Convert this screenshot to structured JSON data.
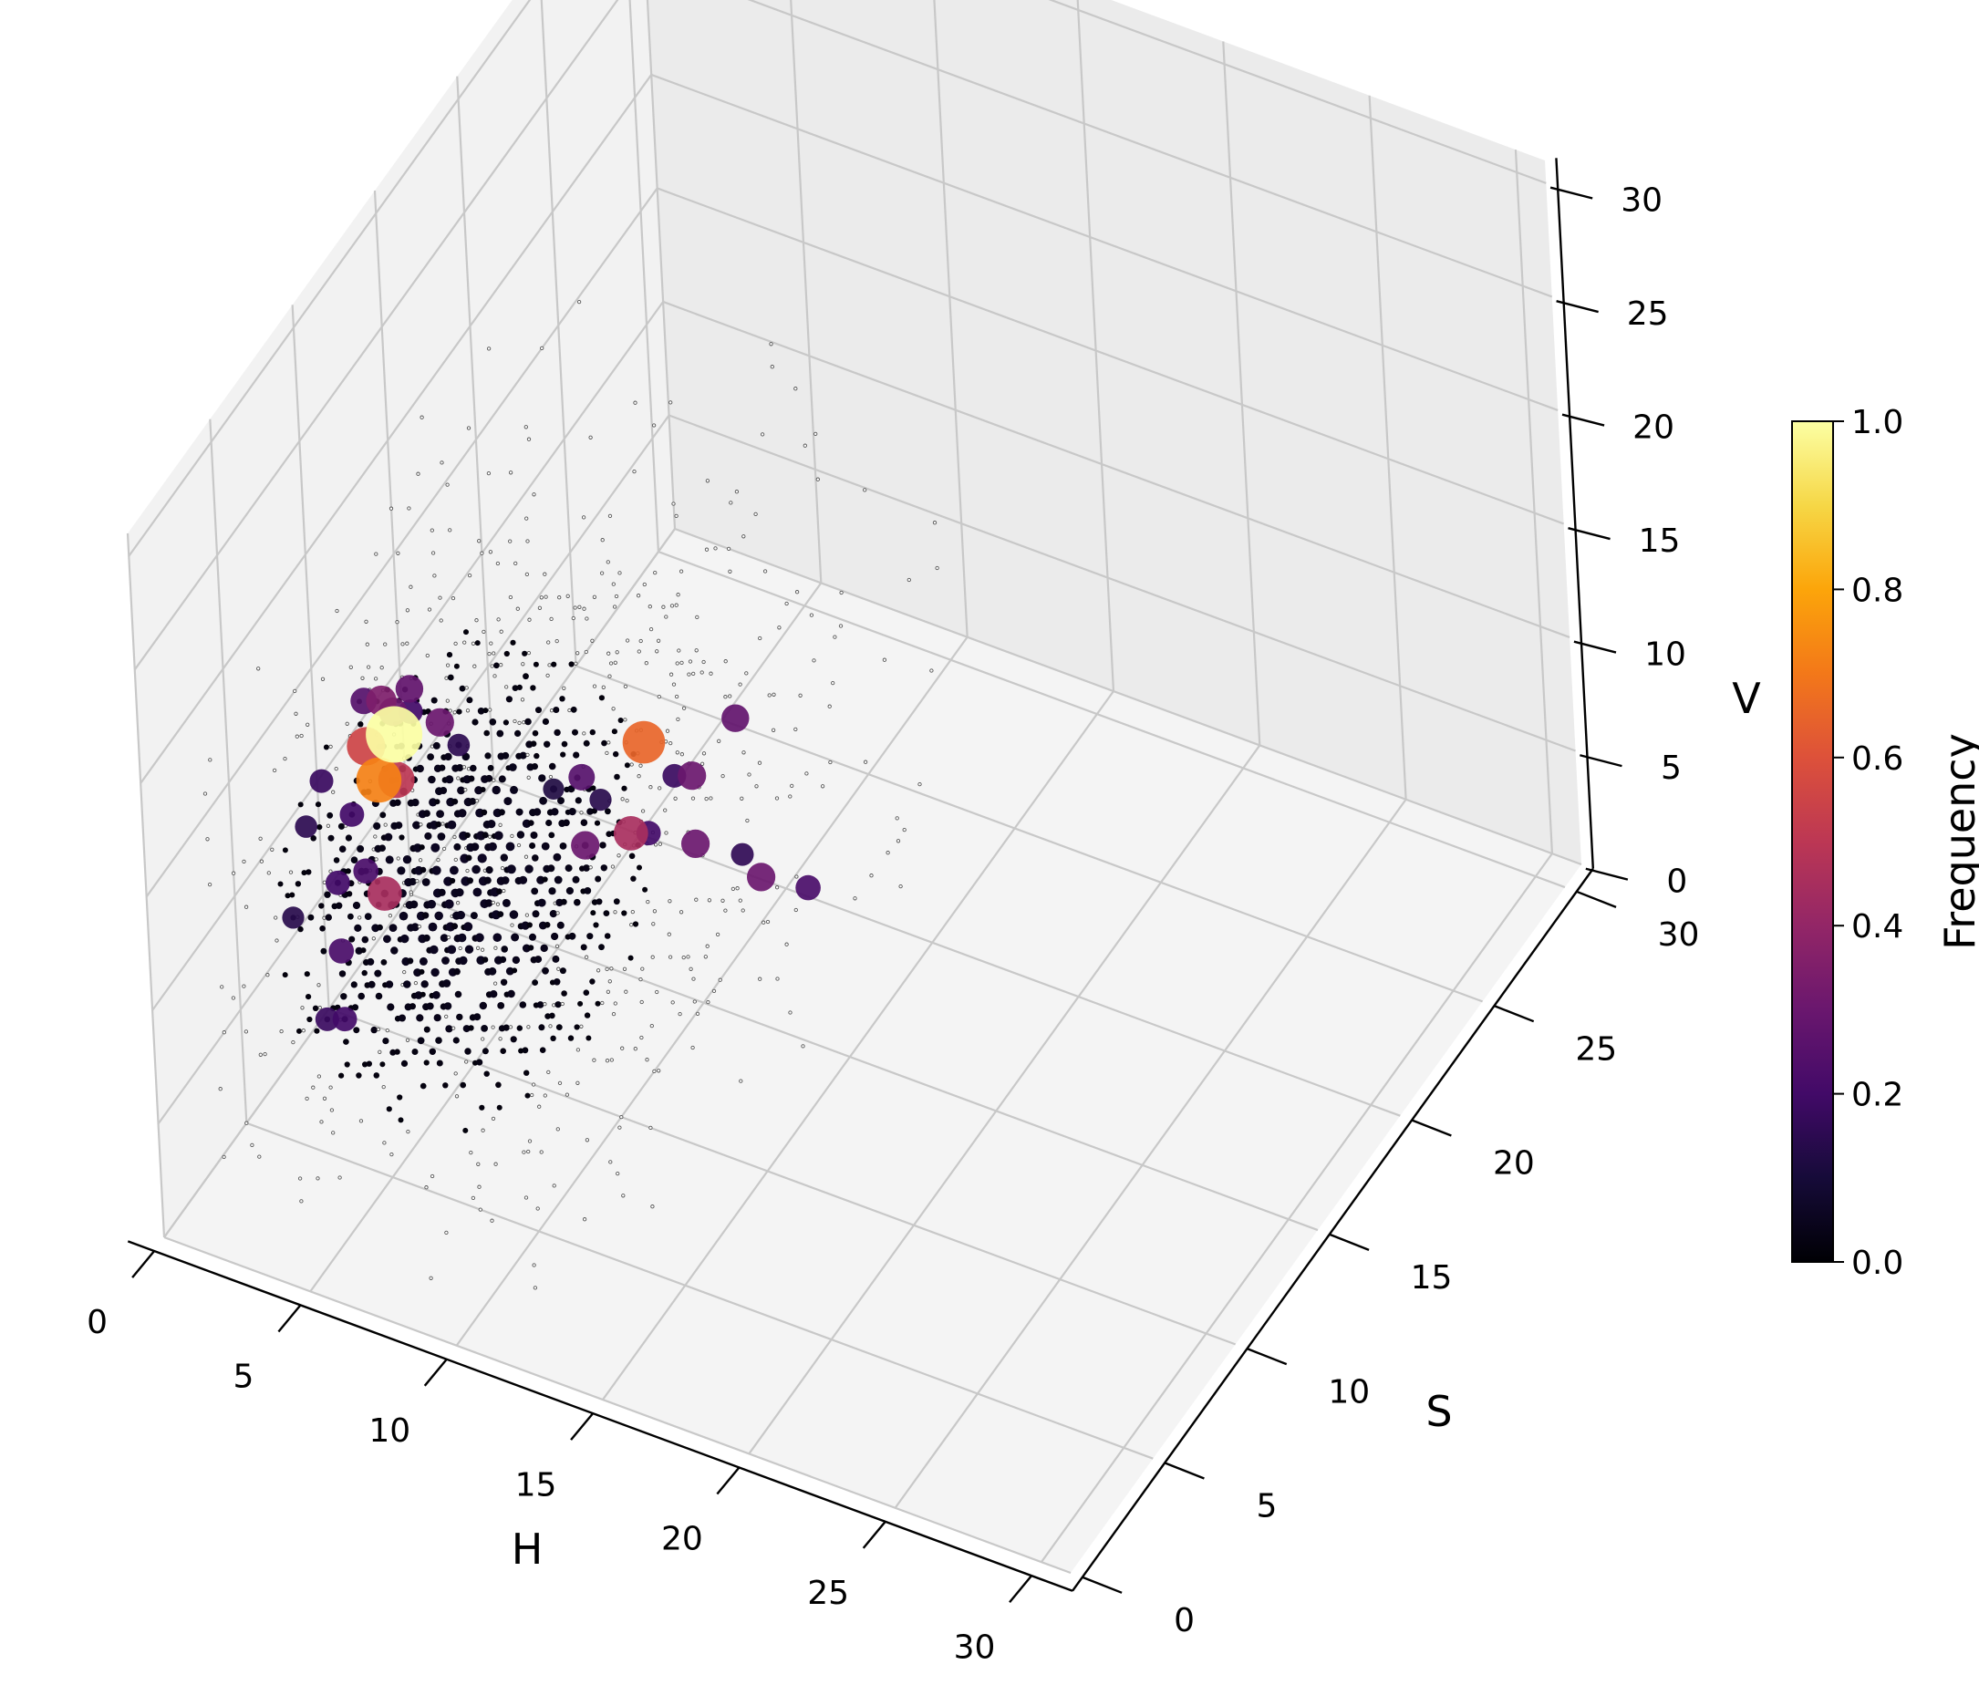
{
  "chart_data": {
    "type": "scatter",
    "dimensions": 3,
    "xlabel": "H",
    "ylabel": "S",
    "zlabel": "V",
    "xlim": [
      0,
      31
    ],
    "ylim": [
      0,
      31
    ],
    "zlim": [
      0,
      31
    ],
    "xticks": [
      "0",
      "5",
      "10",
      "15",
      "20",
      "25",
      "30"
    ],
    "yticks": [
      "0",
      "5",
      "10",
      "15",
      "20",
      "25",
      "30"
    ],
    "zticks": [
      "0",
      "5",
      "10",
      "15",
      "20",
      "25",
      "30"
    ],
    "grid": true,
    "colormap": "inferno",
    "colorbar": {
      "label": "Frequency",
      "min": 0.0,
      "max": 1.0,
      "ticks": [
        "0.0",
        "0.2",
        "0.4",
        "0.6",
        "0.8",
        "1.0"
      ]
    },
    "point_color_encoding": "frequency",
    "point_size_encoding": "frequency",
    "highlighted_points": [
      {
        "h": 4,
        "s": 8,
        "v": 16,
        "freq": 1.0
      },
      {
        "h": 4,
        "s": 7,
        "v": 15,
        "freq": 0.72
      },
      {
        "h": 3,
        "s": 8,
        "v": 15,
        "freq": 0.55
      },
      {
        "h": 3,
        "s": 9,
        "v": 16,
        "freq": 0.35
      },
      {
        "h": 4,
        "s": 9,
        "v": 17,
        "freq": 0.28
      },
      {
        "h": 5,
        "s": 9,
        "v": 16,
        "freq": 0.3
      },
      {
        "h": 4,
        "s": 8,
        "v": 14,
        "freq": 0.5
      },
      {
        "h": 9,
        "s": 14,
        "v": 12,
        "freq": 0.65
      },
      {
        "h": 9,
        "s": 13,
        "v": 9,
        "freq": 0.45
      },
      {
        "h": 4,
        "s": 7,
        "v": 10,
        "freq": 0.45
      },
      {
        "h": 10,
        "s": 15,
        "v": 10,
        "freq": 0.3
      },
      {
        "h": 11,
        "s": 16,
        "v": 12,
        "freq": 0.28
      },
      {
        "h": 10,
        "s": 15,
        "v": 7,
        "freq": 0.3
      },
      {
        "h": 11,
        "s": 17,
        "v": 4,
        "freq": 0.3
      },
      {
        "h": 8,
        "s": 12,
        "v": 12,
        "freq": 0.25
      },
      {
        "h": 3,
        "s": 6,
        "v": 11,
        "freq": 0.2
      },
      {
        "h": 3,
        "s": 6,
        "v": 8,
        "freq": 0.22
      },
      {
        "h": 8,
        "s": 12,
        "v": 9,
        "freq": 0.3
      },
      {
        "h": 3,
        "s": 7,
        "v": 13,
        "freq": 0.2
      },
      {
        "h": 2,
        "s": 7,
        "v": 14,
        "freq": 0.18
      },
      {
        "h": 4,
        "s": 6,
        "v": 12,
        "freq": 0.22
      },
      {
        "h": 9,
        "s": 14,
        "v": 8,
        "freq": 0.2
      },
      {
        "h": 4,
        "s": 8,
        "v": 17,
        "freq": 0.3
      },
      {
        "h": 3,
        "s": 8,
        "v": 17,
        "freq": 0.25
      },
      {
        "h": 4,
        "s": 9,
        "v": 16,
        "freq": 0.2
      },
      {
        "h": 3,
        "s": 5,
        "v": 6,
        "freq": 0.18
      },
      {
        "h": 3,
        "s": 6,
        "v": 5,
        "freq": 0.2
      },
      {
        "h": 12,
        "s": 18,
        "v": 3,
        "freq": 0.22
      },
      {
        "h": 5,
        "s": 10,
        "v": 14,
        "freq": 0.15
      },
      {
        "h": 10,
        "s": 14,
        "v": 11,
        "freq": 0.18
      },
      {
        "h": 2,
        "s": 6,
        "v": 13,
        "freq": 0.15
      },
      {
        "h": 2,
        "s": 5,
        "v": 10,
        "freq": 0.14
      },
      {
        "h": 8,
        "s": 13,
        "v": 10,
        "freq": 0.14
      },
      {
        "h": 7,
        "s": 12,
        "v": 11,
        "freq": 0.12
      },
      {
        "h": 11,
        "s": 16,
        "v": 6,
        "freq": 0.16
      }
    ],
    "background_points_note": "dense low-frequency lattice of points concentrated in H 0-14, S 3-24, V 0-20"
  }
}
